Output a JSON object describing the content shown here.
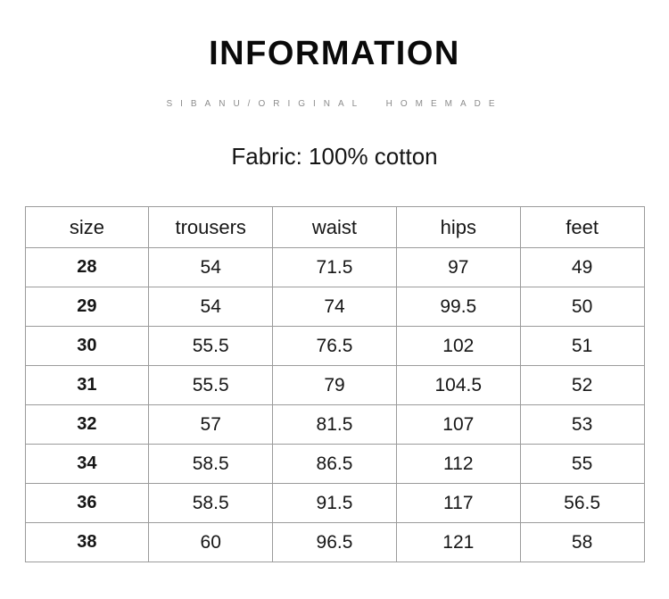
{
  "header": {
    "title": "INFORMATION",
    "subtitle": "SIBANU/ORIGINAL HOMEMADE",
    "fabric": "Fabric: 100% cotton"
  },
  "chart_data": {
    "type": "table",
    "title": "INFORMATION",
    "subtitle": "SIBANU/ORIGINAL HOMEMADE",
    "note": "Fabric: 100% cotton",
    "columns": [
      "size",
      "trousers",
      "waist",
      "hips",
      "feet"
    ],
    "rows": [
      [
        "28",
        "54",
        "71.5",
        "97",
        "49"
      ],
      [
        "29",
        "54",
        "74",
        "99.5",
        "50"
      ],
      [
        "30",
        "55.5",
        "76.5",
        "102",
        "51"
      ],
      [
        "31",
        "55.5",
        "79",
        "104.5",
        "52"
      ],
      [
        "32",
        "57",
        "81.5",
        "107",
        "53"
      ],
      [
        "34",
        "58.5",
        "86.5",
        "112",
        "55"
      ],
      [
        "36",
        "58.5",
        "91.5",
        "117",
        "56.5"
      ],
      [
        "38",
        "60",
        "96.5",
        "121",
        "58"
      ]
    ]
  },
  "colors": {
    "background": "#ffffff",
    "title_text": "#0a0a0a",
    "subtitle_text": "#8c8c8c",
    "body_text": "#161616",
    "table_border": "#9b9b9b"
  }
}
